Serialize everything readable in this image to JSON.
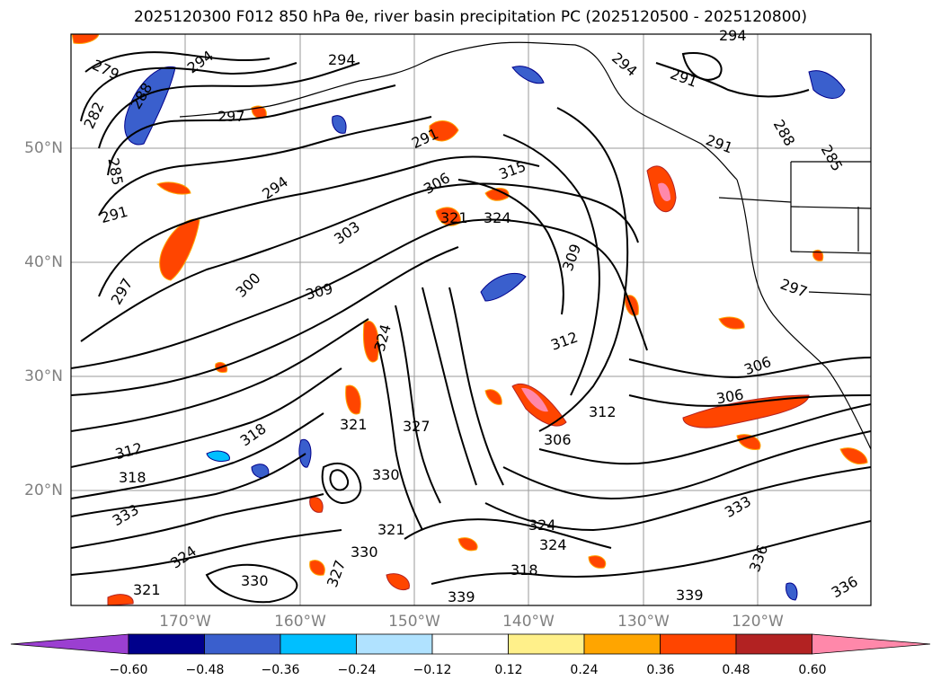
{
  "title": "2025120300 F012 850 hPa θe, river basin precipitation PC (2025120500 - 2025120800)",
  "map": {
    "lat_labels": [
      "50°N",
      "40°N",
      "30°N",
      "20°N"
    ],
    "lon_labels": [
      "170°W",
      "160°W",
      "150°W",
      "140°W",
      "130°W",
      "120°W"
    ],
    "contour_labels": [
      "279",
      "294",
      "294",
      "294",
      "291",
      "282",
      "288",
      "297",
      "285",
      "291",
      "294",
      "297",
      "300",
      "303",
      "306",
      "315",
      "321",
      "324",
      "309",
      "309",
      "312",
      "306",
      "312",
      "318",
      "312",
      "318",
      "321",
      "324",
      "327",
      "330",
      "321",
      "318",
      "324",
      "324",
      "330",
      "339",
      "333",
      "336",
      "339",
      "306",
      "306",
      "297",
      "291",
      "288",
      "285",
      "291",
      "294",
      "333",
      "336",
      "321",
      "327",
      "324",
      "330"
    ]
  },
  "colorbar": {
    "colors": [
      "#9b3fd1",
      "#00008b",
      "#3a5fcd",
      "#00bfff",
      "#b0e2ff",
      "#ffffff",
      "#fff08a",
      "#ffa500",
      "#ff4500",
      "#b22222",
      "#ff88aa"
    ],
    "ticks": [
      "−0.60",
      "−0.48",
      "−0.36",
      "−0.24",
      "−0.12",
      "0.12",
      "0.24",
      "0.36",
      "0.48",
      "0.60"
    ]
  }
}
